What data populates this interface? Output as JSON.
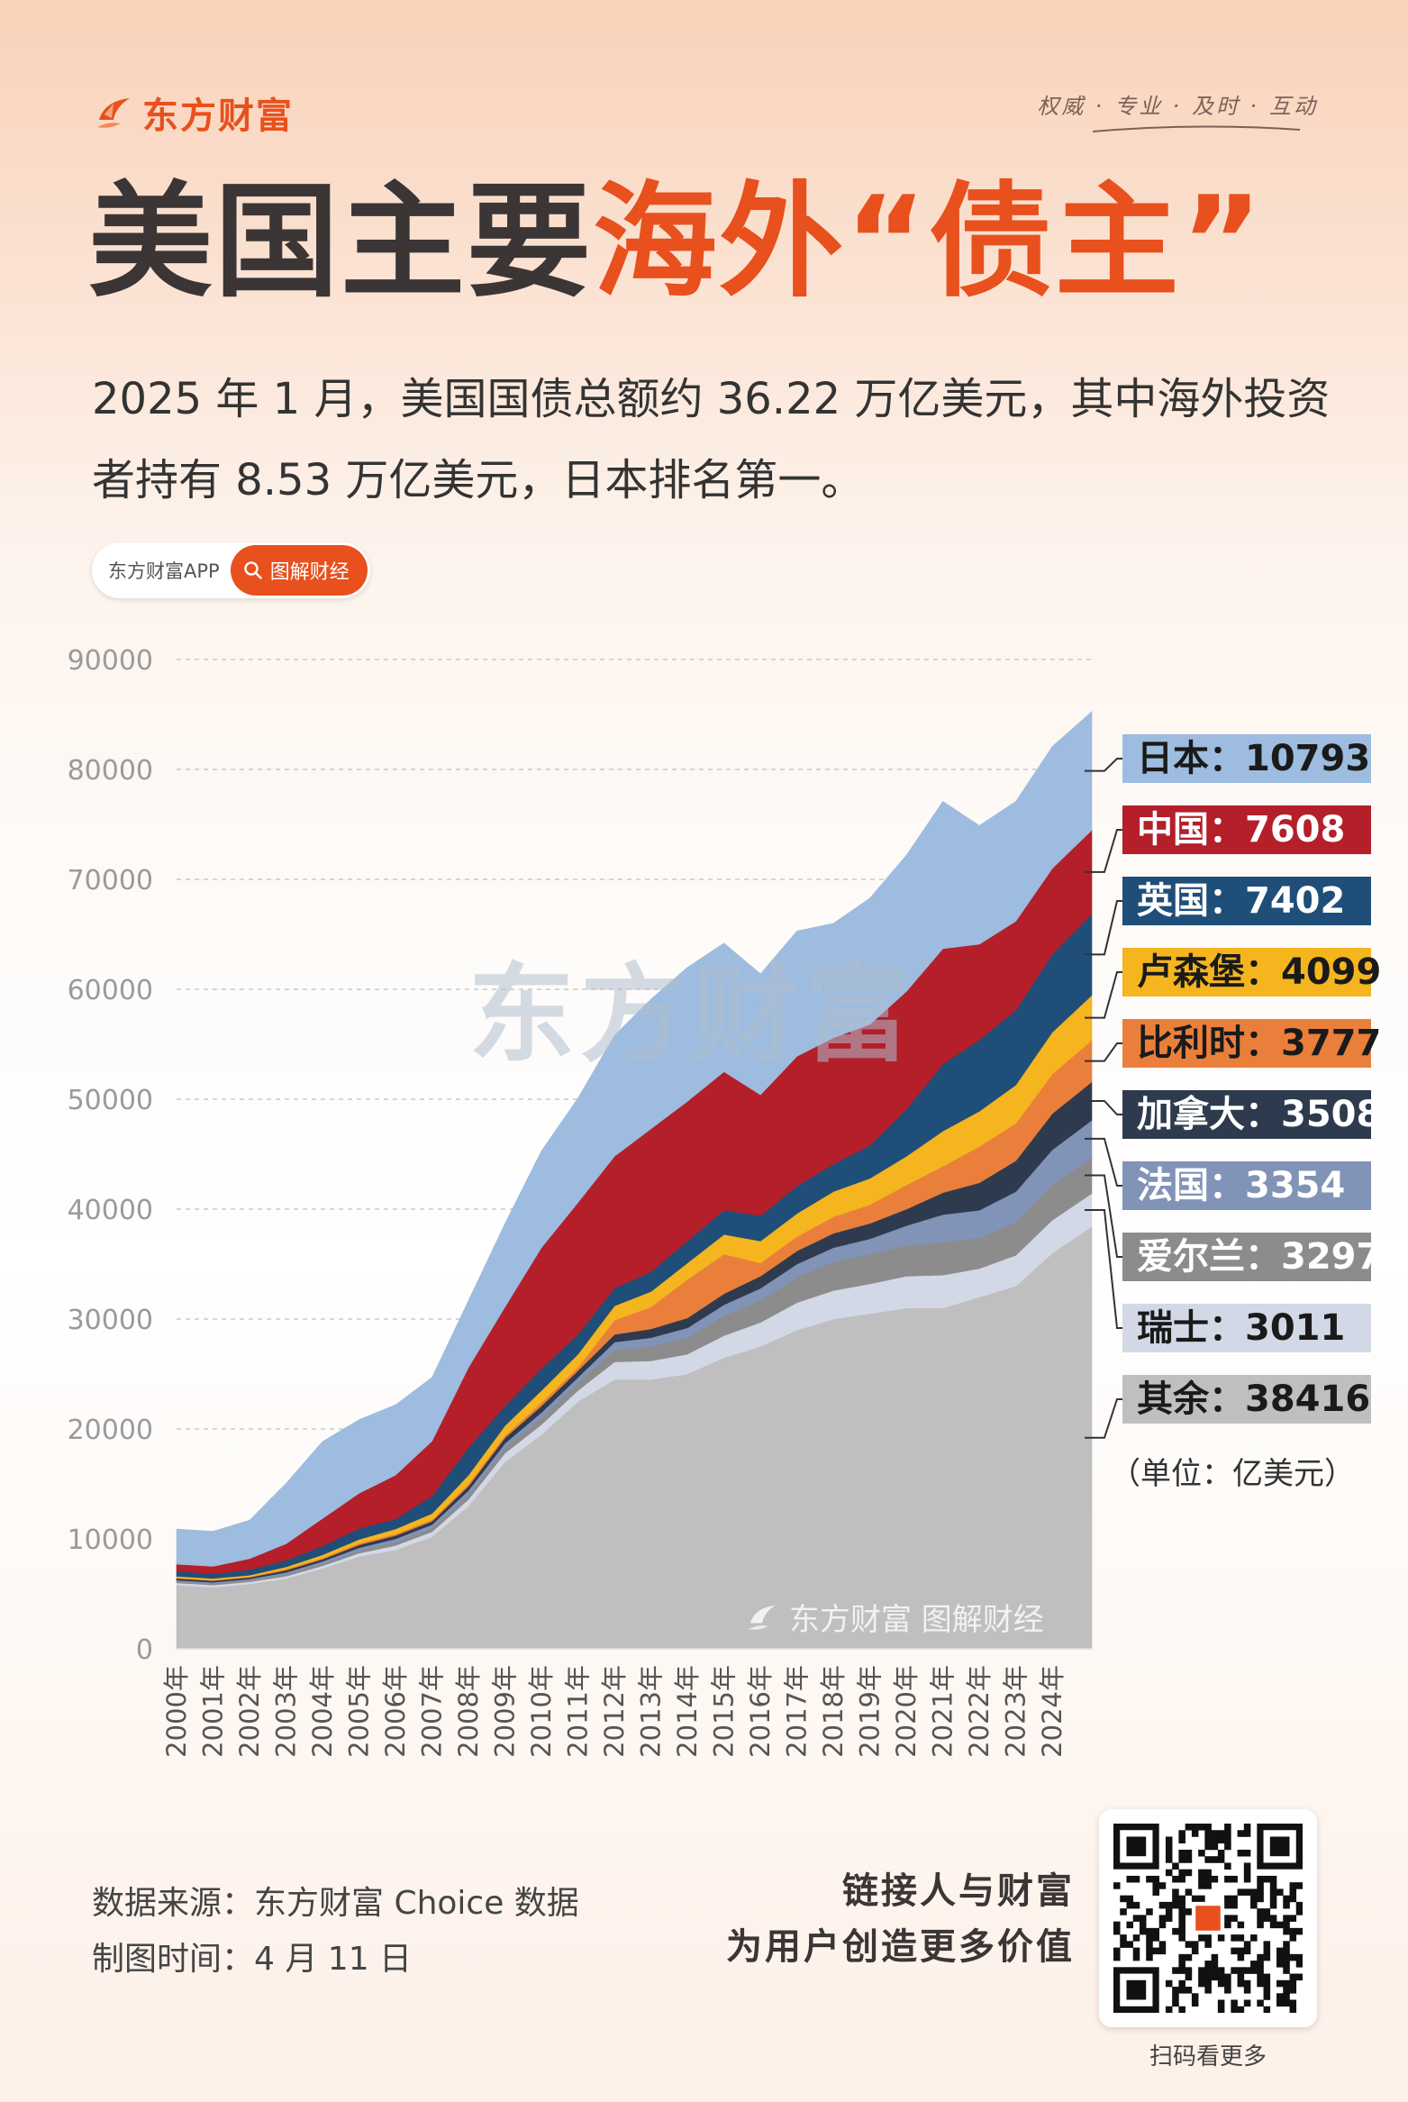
{
  "brand": {
    "name": "东方财富",
    "slogan": "权威 · 专业 · 及时 · 互动"
  },
  "title": {
    "part1": "美国主要",
    "part2": "海外“债主”"
  },
  "subtitle": "2025 年 1 月，美国国债总额约 36.22 万亿美元，其中海外投资者持有 8.53 万亿美元，日本排名第一。",
  "pill": {
    "app": "东方财富APP",
    "tag": "图解财经"
  },
  "unit": "（单位：亿美元）",
  "watermark": "东方财富",
  "chart_brand": "东方财富 图解财经",
  "footer": {
    "source": "数据来源：东方财富 Choice 数据",
    "time": "制图时间：4 月 11 日",
    "motto1": "链接人与财富",
    "motto2": "为用户创造更多价值",
    "qr_caption": "扫码看更多"
  },
  "chart_data": {
    "type": "area",
    "stacked": true,
    "title": "",
    "xlabel": "",
    "ylabel": "",
    "ylim": [
      0,
      90000
    ],
    "yticks": [
      0,
      10000,
      20000,
      30000,
      40000,
      50000,
      60000,
      70000,
      80000,
      90000
    ],
    "grid": true,
    "x": [
      2000,
      2001,
      2002,
      2003,
      2004,
      2005,
      2006,
      2007,
      2008,
      2009,
      2010,
      2011,
      2012,
      2013,
      2014,
      2015,
      2016,
      2017,
      2018,
      2019,
      2020,
      2021,
      2022,
      2023,
      2024,
      2025.08
    ],
    "x_tick_labels": [
      "2000年",
      "2001年",
      "2002年",
      "2003年",
      "2004年",
      "2005年",
      "2006年",
      "2007年",
      "2008年",
      "2009年",
      "2010年",
      "2011年",
      "2012年",
      "2013年",
      "2014年",
      "2015年",
      "2016年",
      "2017年",
      "2018年",
      "2019年",
      "2020年",
      "2021年",
      "2022年",
      "2023年",
      "2024年"
    ],
    "series_order_bottom_to_top": [
      "其余",
      "瑞士",
      "爱尔兰",
      "法国",
      "加拿大",
      "比利时",
      "卢森堡",
      "英国",
      "中国",
      "日本"
    ],
    "series": [
      {
        "name": "其余",
        "color": "#bfbfbf",
        "values": [
          5800,
          5600,
          5900,
          6400,
          7300,
          8400,
          9000,
          10200,
          13000,
          17000,
          19500,
          22500,
          24500,
          24500,
          25000,
          26500,
          27500,
          29000,
          30000,
          30500,
          31000,
          31000,
          32000,
          33000,
          36000,
          38416
        ]
      },
      {
        "name": "瑞士",
        "color": "#d2d8e6",
        "values": [
          200,
          200,
          200,
          200,
          250,
          300,
          400,
          450,
          600,
          800,
          900,
          1000,
          1600,
          1700,
          1800,
          2000,
          2200,
          2500,
          2600,
          2700,
          2900,
          3000,
          2600,
          2800,
          3000,
          3011
        ]
      },
      {
        "name": "爱尔兰",
        "color": "#8c8c8c",
        "values": [
          150,
          150,
          150,
          200,
          200,
          250,
          300,
          350,
          400,
          500,
          600,
          700,
          1100,
          1300,
          1500,
          1800,
          2000,
          2300,
          2600,
          2700,
          2800,
          3000,
          2800,
          3000,
          3200,
          3297
        ]
      },
      {
        "name": "法国",
        "color": "#8293b8",
        "values": [
          100,
          100,
          100,
          150,
          200,
          250,
          300,
          300,
          400,
          400,
          500,
          500,
          700,
          800,
          900,
          1000,
          1100,
          1200,
          1300,
          1400,
          1800,
          2500,
          2500,
          2800,
          3200,
          3354
        ]
      },
      {
        "name": "加拿大",
        "color": "#2e3b4e",
        "values": [
          150,
          150,
          150,
          200,
          200,
          250,
          300,
          300,
          400,
          500,
          600,
          600,
          700,
          800,
          900,
          1000,
          1100,
          1200,
          1300,
          1400,
          1500,
          2000,
          2500,
          2800,
          3300,
          3508
        ]
      },
      {
        "name": "比利时",
        "color": "#ea7f3b",
        "values": [
          50,
          50,
          50,
          100,
          100,
          150,
          150,
          150,
          200,
          200,
          300,
          300,
          1300,
          2000,
          3500,
          3600,
          1200,
          1300,
          1500,
          1700,
          2200,
          2400,
          3300,
          3400,
          3600,
          3777
        ]
      },
      {
        "name": "卢森堡",
        "color": "#f4b51f",
        "values": [
          150,
          150,
          150,
          200,
          300,
          350,
          450,
          550,
          800,
          900,
          1100,
          1200,
          1300,
          1400,
          1500,
          1800,
          2000,
          2100,
          2300,
          2400,
          2600,
          3200,
          3200,
          3500,
          3800,
          4099
        ]
      },
      {
        "name": "英国",
        "color": "#1f4e79",
        "values": [
          500,
          400,
          500,
          600,
          800,
          1000,
          900,
          1600,
          2500,
          1800,
          2000,
          1800,
          1600,
          1800,
          2000,
          2200,
          2300,
          2500,
          2500,
          3000,
          4300,
          6100,
          6500,
          6800,
          7100,
          7402
        ]
      },
      {
        "name": "中国",
        "color": "#b41f2a",
        "values": [
          600,
          700,
          1000,
          1500,
          2500,
          3200,
          4000,
          5000,
          7300,
          9000,
          11000,
          12000,
          12000,
          13000,
          12700,
          12600,
          11000,
          11800,
          11500,
          11000,
          10700,
          10500,
          8700,
          8100,
          7800,
          7608
        ]
      },
      {
        "name": "日本",
        "color": "#9dbcdf",
        "values": [
          3200,
          3200,
          3500,
          5500,
          7000,
          6700,
          6400,
          5800,
          6100,
          7600,
          8800,
          9500,
          11000,
          11800,
          12200,
          11700,
          11000,
          11400,
          10400,
          11500,
          12400,
          13400,
          10800,
          10900,
          11100,
          10793
        ]
      }
    ],
    "legend": "right",
    "legend_entries": [
      {
        "label": "日本",
        "value": "10793",
        "bg": "#9dbcdf",
        "fg": "#1a1a1a"
      },
      {
        "label": "中国",
        "value": "7608",
        "bg": "#b41f2a",
        "fg": "#ffffff"
      },
      {
        "label": "英国",
        "value": "7402",
        "bg": "#1f4e79",
        "fg": "#ffffff"
      },
      {
        "label": "卢森堡",
        "value": "4099",
        "bg": "#f4b51f",
        "fg": "#1a1a1a"
      },
      {
        "label": "比利时",
        "value": "3777",
        "bg": "#ea7f3b",
        "fg": "#1a1a1a"
      },
      {
        "label": "加拿大",
        "value": "3508",
        "bg": "#2e3b4e",
        "fg": "#ffffff"
      },
      {
        "label": "法国",
        "value": "3354",
        "bg": "#8293b8",
        "fg": "#ffffff"
      },
      {
        "label": "爱尔兰",
        "value": "3297",
        "bg": "#8c8c8c",
        "fg": "#ffffff"
      },
      {
        "label": "瑞士",
        "value": "3011",
        "bg": "#d2d8e6",
        "fg": "#1a1a1a"
      },
      {
        "label": "其余",
        "value": "38416",
        "bg": "#bfbfbf",
        "fg": "#1a1a1a"
      }
    ]
  }
}
